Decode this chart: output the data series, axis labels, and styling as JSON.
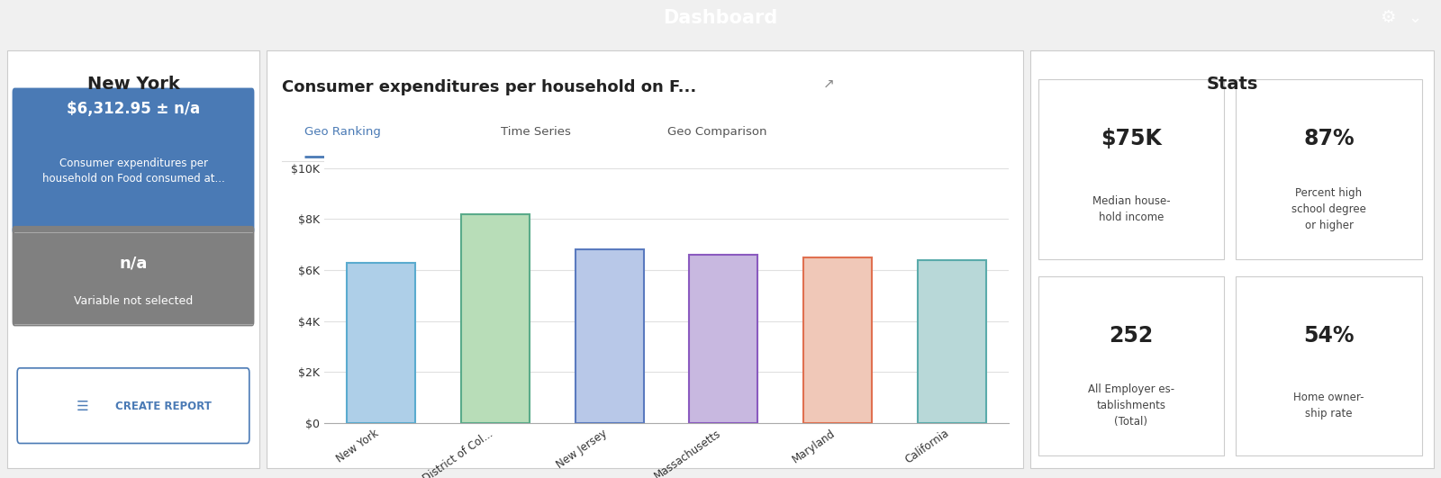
{
  "title": "Dashboard",
  "title_bg": "#4a7ab5",
  "title_color": "#ffffff",
  "left_panel_title": "New York",
  "blue_box_value": "$6,312.95 ± n/a",
  "blue_box_desc": "Consumer expenditures per\nhousehold on Food consumed at...",
  "blue_box_bg": "#4a7ab5",
  "gray_box_value": "n/a",
  "gray_box_desc": "Variable not selected",
  "gray_box_bg": "#808080",
  "create_report_color": "#4a7ab5",
  "chart_title": "Consumer expenditures per household on F...",
  "tab_active": "Geo Ranking",
  "tab_inactive": [
    "Time Series",
    "Geo Comparison"
  ],
  "tab_active_color": "#4a7ab5",
  "tab_inactive_color": "#555555",
  "bar_categories": [
    "New York",
    "District of Col...",
    "New Jersey",
    "Massachusetts",
    "Maryland",
    "California"
  ],
  "bar_values": [
    6300,
    8200,
    6800,
    6600,
    6500,
    6400
  ],
  "bar_colors": [
    "#aecfe8",
    "#b8ddb8",
    "#b8c8e8",
    "#c8b8e0",
    "#f0c8b8",
    "#b8d8d8"
  ],
  "bar_edge_colors": [
    "#5aabcf",
    "#5aab8a",
    "#5a7abf",
    "#8a5abf",
    "#e07050",
    "#5aabab"
  ],
  "ytick_labels": [
    "$0",
    "$2K",
    "$4K",
    "$6K",
    "$8K",
    "$10K"
  ],
  "ytick_values": [
    0,
    2000,
    4000,
    6000,
    8000,
    10000
  ],
  "ymax": 10500,
  "stats_title": "Stats",
  "stat1_value": "$75K",
  "stat1_label": "Median house-\nhold income",
  "stat2_value": "87%",
  "stat2_label": "Percent high\nschool degree\nor higher",
  "stat3_value": "252",
  "stat3_label": "All Employer es-\ntablishments\n(Total)",
  "stat4_value": "54%",
  "stat4_label": "Home owner-\nship rate",
  "grid_color": "#e0e0e0"
}
